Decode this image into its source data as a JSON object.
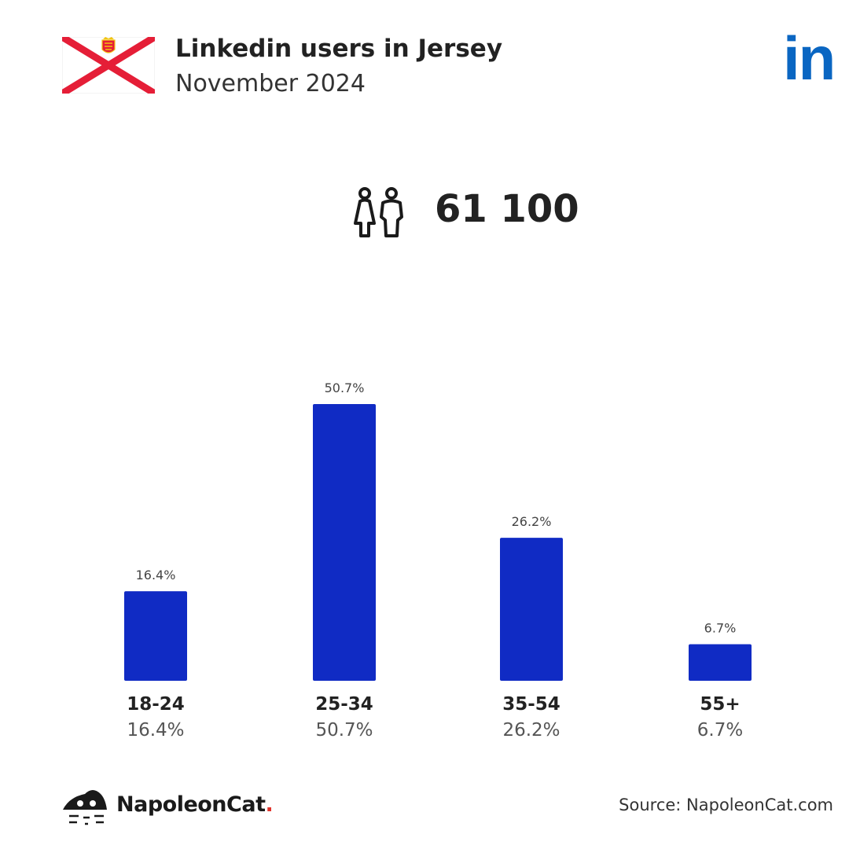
{
  "header": {
    "title": "Linkedin users in Jersey",
    "subtitle": "November 2024",
    "logo_text": "in"
  },
  "total": {
    "value": "61 100"
  },
  "colors": {
    "bar": "#102bc4",
    "flag_red": "#e51e37",
    "linkedin": "#0a66c2"
  },
  "chart_data": {
    "type": "bar",
    "title": "",
    "categories": [
      "18-24",
      "25-34",
      "35-54",
      "55+"
    ],
    "values": [
      16.4,
      50.7,
      26.2,
      6.7
    ],
    "value_labels": [
      "16.4%",
      "50.7%",
      "26.2%",
      "6.7%"
    ],
    "ylim": [
      0,
      50.7
    ],
    "grid": false,
    "legend": "none"
  },
  "footer": {
    "brand": "NapoleonCat",
    "brand_dot": ".",
    "source": "Source: NapoleonCat.com"
  }
}
